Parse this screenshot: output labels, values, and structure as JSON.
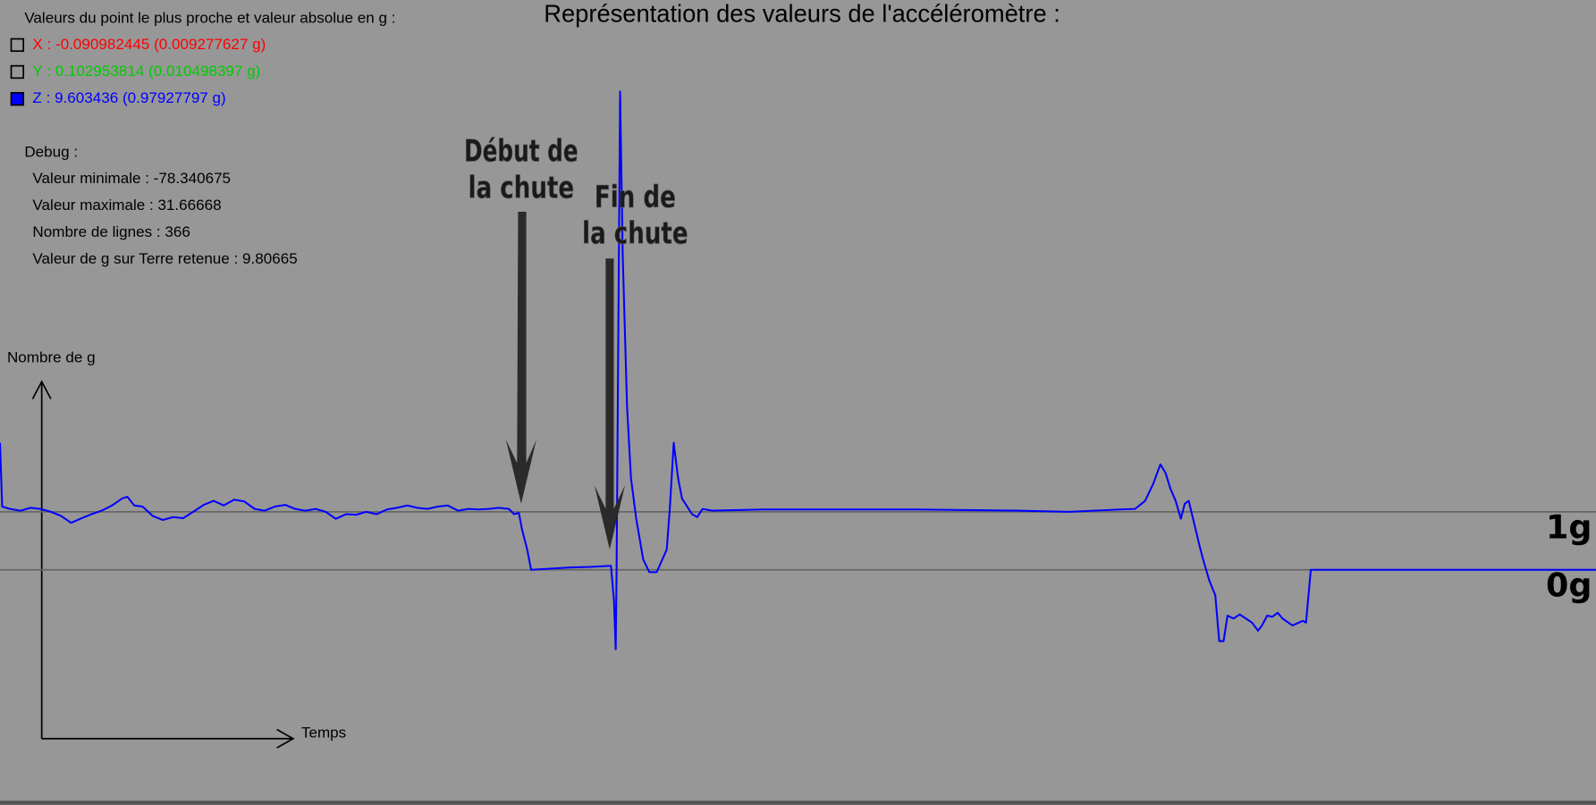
{
  "header": {
    "title": "Représentation des valeurs de l'accéléromètre :"
  },
  "readout": {
    "heading": "Valeurs du point le plus proche et valeur absolue en g :",
    "items": [
      {
        "text": "X : -0.090982445 (0.009277627 g)",
        "color": "#ff0000",
        "checked": false
      },
      {
        "text": "Y : 0.102953814 (0.010498397 g)",
        "color": "#00cc00",
        "checked": false
      },
      {
        "text": "Z : 9.603436 (0.97927797 g)",
        "color": "#0000ff",
        "checked": true
      }
    ]
  },
  "debug": {
    "heading": "Debug :",
    "lines": [
      "Valeur minimale : -78.340675",
      "Valeur maximale : 31.66668",
      "Nombre de lignes : 366",
      "Valeur de g sur Terre retenue : 9.80665"
    ]
  },
  "axes": {
    "y_label": "Nombre de g",
    "x_label": "Temps"
  },
  "annotations": [
    {
      "lines": [
        "Début de",
        "la chute"
      ]
    },
    {
      "lines": [
        "Fin de",
        "la chute"
      ]
    }
  ],
  "plot": {
    "color": "#0000ff",
    "reference_lines": [
      {
        "value": 1,
        "label": "1g"
      },
      {
        "value": 0,
        "label": "0g"
      }
    ],
    "x": [
      0,
      0.5,
      2.3,
      4.7,
      7.0,
      9.3,
      11.7,
      14.0,
      16.3,
      18.7,
      21.0,
      23.3,
      25.7,
      28.0,
      29.2,
      30.8,
      32.7,
      35.0,
      37.3,
      39.7,
      42.0,
      44.3,
      46.7,
      49.0,
      51.3,
      53.7,
      56.0,
      58.4,
      60.7,
      63.0,
      65.4,
      67.7,
      70.0,
      72.4,
      74.7,
      77.0,
      79.4,
      81.7,
      84.0,
      86.4,
      88.7,
      91.0,
      93.4,
      95.7,
      98.0,
      100.4,
      102.7,
      105.0,
      107.4,
      109.7,
      112.0,
      114.4,
      116.7,
      117.9,
      119.0,
      119.7,
      120.9,
      121.8,
      126.0,
      130.7,
      135.4,
      140.1,
      140.8,
      141.2,
      141.4,
      142.2,
      142.8,
      143.8,
      144.7,
      145.9,
      147.5,
      148.9,
      150.6,
      152.9,
      153.6,
      154.5,
      155.5,
      156.4,
      158.7,
      159.9,
      161.1,
      163.4,
      175.1,
      186.7,
      210.1,
      233.4,
      245.1,
      256.8,
      260.3,
      262.6,
      264.5,
      266.1,
      267.3,
      268.4,
      269.6,
      270.8,
      271.7,
      272.6,
      273.6,
      275.0,
      275.9,
      277.3,
      278.7,
      279.6,
      280.6,
      281.5,
      282.9,
      284.3,
      285.7,
      287.1,
      288.5,
      289.4,
      290.6,
      291.8,
      293.0,
      294.1,
      296.4,
      298.8,
      299.5,
      300.6,
      366
    ],
    "values": [
      2.19,
      1.09,
      1.05,
      1.02,
      1.07,
      1.05,
      1.0,
      0.93,
      0.81,
      0.89,
      0.96,
      1.02,
      1.11,
      1.23,
      1.26,
      1.11,
      1.09,
      0.93,
      0.86,
      0.91,
      0.89,
      1.0,
      1.12,
      1.19,
      1.11,
      1.21,
      1.18,
      1.05,
      1.02,
      1.09,
      1.12,
      1.05,
      1.02,
      1.05,
      1.0,
      0.88,
      0.96,
      0.95,
      1.0,
      0.96,
      1.04,
      1.07,
      1.11,
      1.07,
      1.05,
      1.09,
      1.11,
      1.02,
      1.05,
      1.04,
      1.05,
      1.07,
      1.05,
      0.96,
      0.98,
      0.7,
      0.35,
      0.0,
      0.02,
      0.04,
      0.05,
      0.07,
      -0.53,
      -1.37,
      0.0,
      8.25,
      5.44,
      2.81,
      1.58,
      0.88,
      0.18,
      -0.04,
      -0.04,
      0.35,
      1.05,
      2.19,
      1.58,
      1.23,
      0.96,
      0.91,
      1.05,
      1.02,
      1.04,
      1.04,
      1.04,
      1.02,
      1.0,
      1.04,
      1.05,
      1.19,
      1.49,
      1.82,
      1.67,
      1.4,
      1.19,
      0.88,
      1.14,
      1.19,
      0.88,
      0.44,
      0.18,
      -0.18,
      -0.44,
      -1.23,
      -1.23,
      -0.79,
      -0.84,
      -0.77,
      -0.84,
      -0.91,
      -1.05,
      -0.96,
      -0.79,
      -0.81,
      -0.74,
      -0.84,
      -0.96,
      -0.88,
      -0.91,
      0.0,
      0.0
    ]
  }
}
